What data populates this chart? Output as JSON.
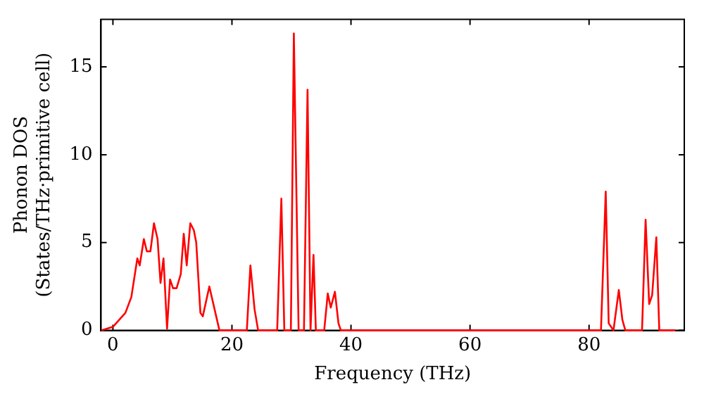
{
  "chart_data": {
    "type": "line",
    "xlabel": "Frequency (THz)",
    "ylabel": "Phonon DOS\n(States/THz·primitive cell)",
    "xlim": [
      -2,
      96
    ],
    "ylim": [
      0,
      17.7
    ],
    "xticks": [
      0,
      20,
      40,
      60,
      80
    ],
    "yticks": [
      0,
      5,
      10,
      15
    ],
    "grid": false,
    "legend": false,
    "marker": "none",
    "line_style": "solid",
    "series": [
      {
        "color": "#ff0000",
        "x": [
          -1.9,
          0.0,
          2.1,
          3.1,
          4.1,
          4.5,
          5.2,
          5.7,
          6.3,
          6.9,
          7.5,
          8.0,
          8.5,
          9.1,
          9.6,
          10.1,
          10.7,
          11.4,
          11.9,
          12.4,
          13.0,
          13.6,
          14.0,
          14.7,
          15.1,
          16.2,
          17.9,
          22.5,
          23.1,
          23.8,
          24.4,
          27.6,
          28.3,
          28.8,
          29.9,
          30.4,
          31.2,
          32.1,
          32.7,
          33.2,
          33.7,
          34.1,
          35.5,
          36.1,
          36.6,
          37.3,
          37.9,
          38.3,
          82.0,
          82.8,
          83.3,
          84.1,
          85.0,
          85.6,
          86.1,
          88.9,
          89.5,
          90.1,
          90.6,
          91.3,
          91.8,
          94.5
        ],
        "values": [
          0,
          0.2,
          1.0,
          1.9,
          4.1,
          3.7,
          5.2,
          4.5,
          4.5,
          6.1,
          5.2,
          2.7,
          4.1,
          0.1,
          2.9,
          2.4,
          2.4,
          3.2,
          5.5,
          3.7,
          6.1,
          5.7,
          5.0,
          1.0,
          0.8,
          2.5,
          0,
          0,
          3.7,
          1.2,
          0,
          0,
          7.5,
          0,
          0,
          16.9,
          0,
          0,
          13.7,
          0,
          4.3,
          0,
          0,
          2.1,
          1.3,
          2.2,
          0.4,
          0,
          0,
          7.9,
          0.4,
          0,
          2.3,
          0.6,
          0,
          0,
          6.3,
          1.5,
          2.0,
          5.3,
          0,
          0
        ]
      }
    ]
  }
}
